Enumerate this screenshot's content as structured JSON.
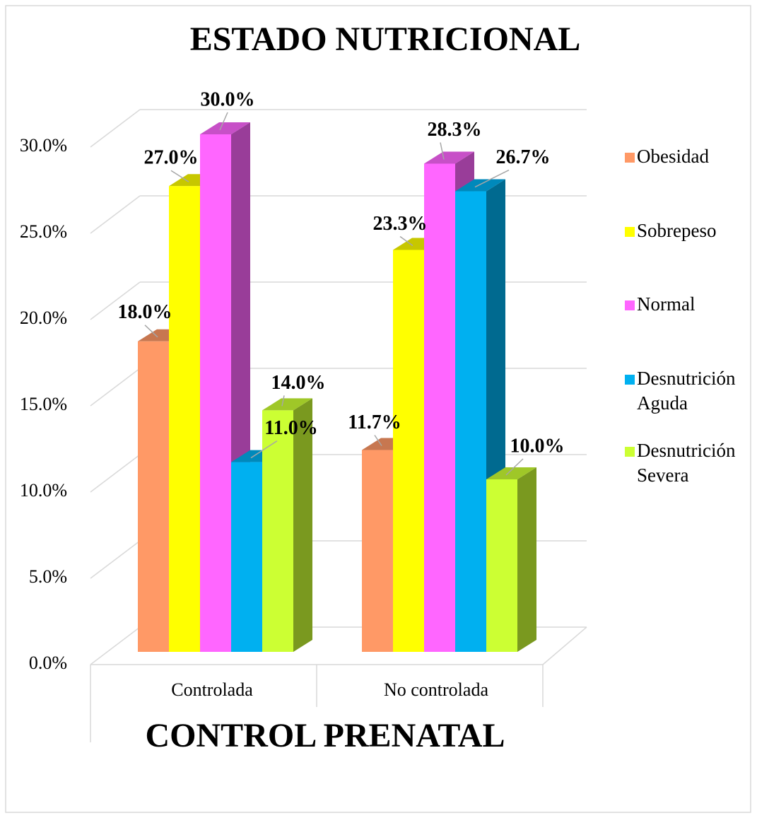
{
  "chart_data": {
    "type": "bar3d",
    "title": "ESTADO NUTRICIONAL",
    "x_label": "CONTROL PRENATAL",
    "categories": [
      "Controlada",
      "No controlada"
    ],
    "series": [
      {
        "name": "Obesidad",
        "color": "#ff9966",
        "values": [
          18.0,
          11.7
        ],
        "value_labels": [
          "18.0%",
          "11.7%"
        ]
      },
      {
        "name": "Sobrepeso",
        "color": "#ffff00",
        "values": [
          27.0,
          23.3
        ],
        "value_labels": [
          "27.0%",
          "23.3%"
        ]
      },
      {
        "name": "Normal",
        "color": "#ff66ff",
        "values": [
          30.0,
          28.3
        ],
        "value_labels": [
          "30.0%",
          "28.3%"
        ]
      },
      {
        "name": "Desnutrición Aguda",
        "color": "#00b0f0",
        "values": [
          11.0,
          26.7
        ],
        "value_labels": [
          "11.0%",
          "26.7%"
        ]
      },
      {
        "name": "Desnutrición Severa",
        "color": "#ccff33",
        "values": [
          14.0,
          10.0
        ],
        "value_labels": [
          "14.0%",
          "10.0%"
        ]
      }
    ],
    "ylim": [
      0,
      30
    ],
    "yticks": [
      {
        "value": 0,
        "label": "0.0%"
      },
      {
        "value": 5,
        "label": "5.0%"
      },
      {
        "value": 10,
        "label": "10.0%"
      },
      {
        "value": 15,
        "label": "15.0%"
      },
      {
        "value": 20,
        "label": "20.0%"
      },
      {
        "value": 25,
        "label": "25.0%"
      },
      {
        "value": 30,
        "label": "30.0%"
      }
    ],
    "grid": true,
    "legend": "right"
  }
}
